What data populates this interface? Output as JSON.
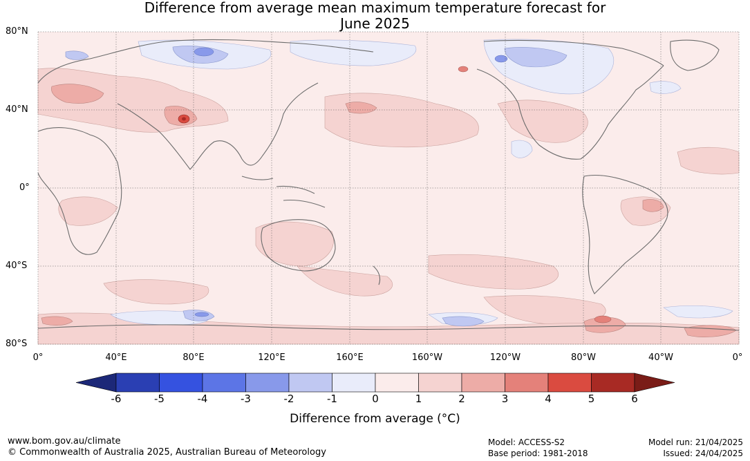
{
  "title_line1": "Difference from average mean maximum temperature forecast for",
  "title_line2": "June 2025",
  "lat_labels": [
    "80°N",
    "40°N",
    "0°",
    "40°S",
    "80°S"
  ],
  "lon_labels": [
    "0°",
    "40°E",
    "80°E",
    "120°E",
    "160°E",
    "160°W",
    "120°W",
    "80°W",
    "40°W",
    "0°"
  ],
  "colorbar": {
    "ticks": [
      "-6",
      "-5",
      "-4",
      "-3",
      "-2",
      "-1",
      "0",
      "1",
      "2",
      "3",
      "4",
      "5",
      "6"
    ],
    "colors": [
      "#1c2878",
      "#2a3fb3",
      "#3552e0",
      "#5c75e6",
      "#8899ea",
      "#c0c8f2",
      "#e9ecfa",
      "#fbeceb",
      "#f5d3d1",
      "#edaca7",
      "#e4817a",
      "#da4b40",
      "#a82a24",
      "#7a1c17"
    ],
    "label": "Difference from average (°C)"
  },
  "footer": {
    "website": "www.bom.gov.au/climate",
    "copyright": "© Commonwealth of Australia 2025, Australian Bureau of Meteorology",
    "model": "Model: ACCESS-S2",
    "base_period": "Base period: 1981-2018",
    "model_run": "Model run: 21/04/2025",
    "issued": "Issued: 24/04/2025"
  }
}
